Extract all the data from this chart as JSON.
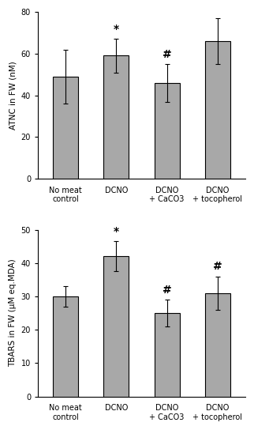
{
  "top": {
    "values": [
      49,
      59,
      46,
      66
    ],
    "errors": [
      13,
      8,
      9,
      11
    ],
    "categories": [
      "No meat\ncontrol",
      "DCNO",
      "DCNO\n+ CaCO3",
      "DCNO\n+ tocopherol"
    ],
    "ylabel": "ATNC in FW (nM)",
    "ylim": [
      0,
      80
    ],
    "yticks": [
      0,
      20,
      40,
      60,
      80
    ],
    "annotations": [
      "",
      "*",
      "#",
      ""
    ],
    "bar_color": "#a8a8a8",
    "bar_edgecolor": "#000000"
  },
  "bottom": {
    "values": [
      30,
      42,
      25,
      31
    ],
    "errors": [
      3,
      4.5,
      4,
      5
    ],
    "categories": [
      "No meat\ncontrol",
      "DCNO",
      "DCNO\n+ CaCO3",
      "DCNO\n+ tocopherol"
    ],
    "ylabel": "TBARS in FW (μM eq.MDA)",
    "ylim": [
      0,
      50
    ],
    "yticks": [
      0,
      10,
      20,
      30,
      40,
      50
    ],
    "annotations": [
      "",
      "*",
      "#",
      "#"
    ],
    "bar_color": "#a8a8a8",
    "bar_edgecolor": "#000000"
  },
  "fig_width": 3.22,
  "fig_height": 5.44,
  "dpi": 100,
  "background_color": "#ffffff",
  "bar_width": 0.5,
  "fontsize_label": 7.5,
  "fontsize_tick": 7,
  "fontsize_annot": 10
}
